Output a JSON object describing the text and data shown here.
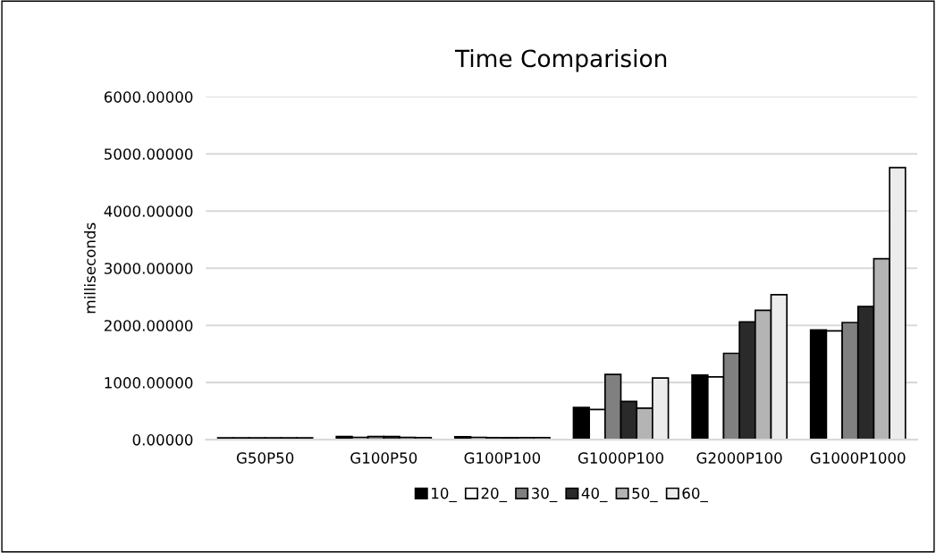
{
  "chart_data": {
    "type": "bar",
    "title": "Time Comparision",
    "ylabel": "milliseconds",
    "categories": [
      "G50P50",
      "G100P50",
      "G100P100",
      "G1000P100",
      "G2000P100",
      "G1000P1000"
    ],
    "series": [
      {
        "name": "10_",
        "color": "#000000",
        "values": [
          30,
          55,
          50,
          563,
          1131,
          1920
        ]
      },
      {
        "name": "20_",
        "color": "#ffffff",
        "values": [
          30,
          40,
          40,
          527,
          1099,
          1904
        ]
      },
      {
        "name": "30_",
        "color": "#808080",
        "values": [
          30,
          55,
          35,
          1142,
          1510,
          2050
        ]
      },
      {
        "name": "40_",
        "color": "#2a2a2a",
        "values": [
          30,
          55,
          35,
          669,
          2062,
          2330
        ]
      },
      {
        "name": "50_",
        "color": "#b4b4b4",
        "values": [
          30,
          40,
          35,
          552,
          2262,
          3166
        ]
      },
      {
        "name": "60_",
        "color": "#ececec",
        "values": [
          30,
          35,
          35,
          1079,
          2535,
          4760
        ]
      }
    ],
    "ylim": [
      0,
      6000
    ],
    "yticks": [
      {
        "value": 0,
        "label": "0.00000"
      },
      {
        "value": 1000,
        "label": "1000.00000"
      },
      {
        "value": 2000,
        "label": "2000.00000"
      },
      {
        "value": 3000,
        "label": "3000.00000"
      },
      {
        "value": 4000,
        "label": "4000.00000"
      },
      {
        "value": 5000,
        "label": "5000.00000"
      },
      {
        "value": 6000,
        "label": "6000.00000"
      }
    ],
    "grid": "y",
    "legend": "bottom"
  }
}
